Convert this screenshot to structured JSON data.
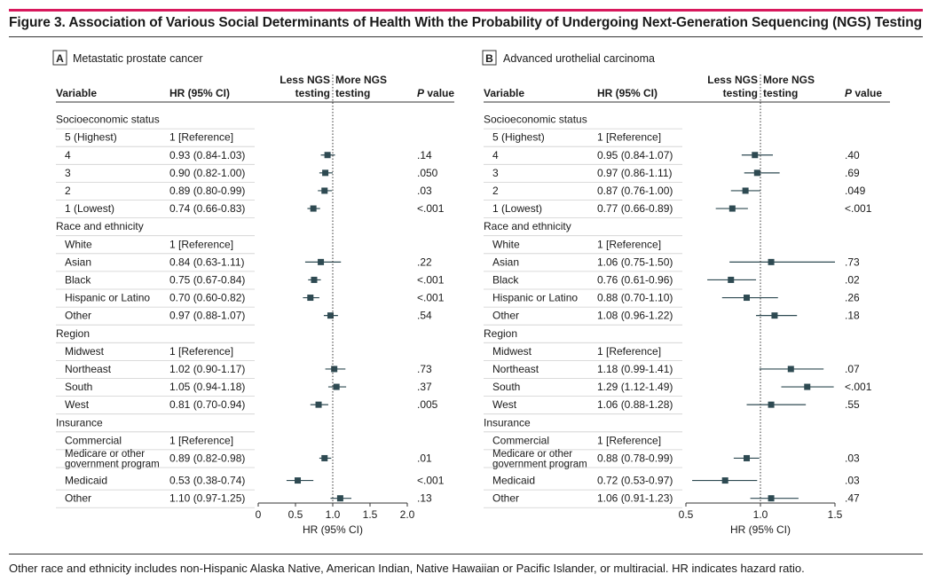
{
  "figure": {
    "title": "Figure 3. Association of Various Social Determinants of Health With the Probability of Undergoing Next-Generation Sequencing (NGS) Testing",
    "footnote": "Other race and ethnicity includes non-Hispanic Alaska Native, American Indian, Native Hawaiian or Pacific Islander, or multiracial. HR indicates hazard ratio.",
    "accent_color": "#d8185c",
    "marker_color": "#2e4a52"
  },
  "headers": {
    "variable": "Variable",
    "hr": "HR (95% CI)",
    "left_dir": [
      "Less NGS",
      "testing"
    ],
    "right_dir": [
      "More NGS",
      "testing"
    ],
    "pvalue": "P value",
    "xlabel": "HR (95% CI)"
  },
  "chart_data": [
    {
      "type": "forest",
      "panel_letter": "A",
      "panel_title": "Metastatic prostate cancer",
      "x_scale": "linear",
      "xlim": [
        0,
        2.0
      ],
      "x_ticks": [
        "0",
        "0.5",
        "1.0",
        "1.5",
        "2.0"
      ],
      "reference_line": 1.0,
      "rows": [
        {
          "variable": "Socioeconomic status",
          "header": true
        },
        {
          "variable": "5 (Highest)",
          "hr_text": "1 [Reference]"
        },
        {
          "variable": "4",
          "hr_text": "0.93 (0.84-1.03)",
          "hr": 0.93,
          "lo": 0.84,
          "hi": 1.03,
          "p": ".14"
        },
        {
          "variable": "3",
          "hr_text": "0.90 (0.82-1.00)",
          "hr": 0.9,
          "lo": 0.82,
          "hi": 1.0,
          "p": ".050"
        },
        {
          "variable": "2",
          "hr_text": "0.89 (0.80-0.99)",
          "hr": 0.89,
          "lo": 0.8,
          "hi": 0.99,
          "p": ".03"
        },
        {
          "variable": "1 (Lowest)",
          "hr_text": "0.74 (0.66-0.83)",
          "hr": 0.74,
          "lo": 0.66,
          "hi": 0.83,
          "p": "<.001"
        },
        {
          "variable": "Race and ethnicity",
          "header": true
        },
        {
          "variable": "White",
          "hr_text": "1 [Reference]"
        },
        {
          "variable": "Asian",
          "hr_text": "0.84 (0.63-1.11)",
          "hr": 0.84,
          "lo": 0.63,
          "hi": 1.11,
          "p": ".22"
        },
        {
          "variable": "Black",
          "hr_text": "0.75 (0.67-0.84)",
          "hr": 0.75,
          "lo": 0.67,
          "hi": 0.84,
          "p": "<.001"
        },
        {
          "variable": "Hispanic or Latino",
          "hr_text": "0.70 (0.60-0.82)",
          "hr": 0.7,
          "lo": 0.6,
          "hi": 0.82,
          "p": "<.001"
        },
        {
          "variable": "Other",
          "hr_text": "0.97 (0.88-1.07)",
          "hr": 0.97,
          "lo": 0.88,
          "hi": 1.07,
          "p": ".54"
        },
        {
          "variable": "Region",
          "header": true
        },
        {
          "variable": "Midwest",
          "hr_text": "1 [Reference]"
        },
        {
          "variable": "Northeast",
          "hr_text": "1.02 (0.90-1.17)",
          "hr": 1.02,
          "lo": 0.9,
          "hi": 1.17,
          "p": ".73"
        },
        {
          "variable": "South",
          "hr_text": "1.05 (0.94-1.18)",
          "hr": 1.05,
          "lo": 0.94,
          "hi": 1.18,
          "p": ".37"
        },
        {
          "variable": "West",
          "hr_text": "0.81 (0.70-0.94)",
          "hr": 0.81,
          "lo": 0.7,
          "hi": 0.94,
          "p": ".005"
        },
        {
          "variable": "Insurance",
          "header": true
        },
        {
          "variable": "Commercial",
          "hr_text": "1 [Reference]"
        },
        {
          "variable": [
            "Medicare or other",
            "government program"
          ],
          "hr_text": "0.89 (0.82-0.98)",
          "hr": 0.89,
          "lo": 0.82,
          "hi": 0.98,
          "p": ".01"
        },
        {
          "variable": "Medicaid",
          "hr_text": "0.53 (0.38-0.74)",
          "hr": 0.53,
          "lo": 0.38,
          "hi": 0.74,
          "p": "<.001"
        },
        {
          "variable": "Other",
          "hr_text": "1.10 (0.97-1.25)",
          "hr": 1.1,
          "lo": 0.97,
          "hi": 1.25,
          "p": ".13"
        }
      ]
    },
    {
      "type": "forest",
      "panel_letter": "B",
      "panel_title": "Advanced urothelial carcinoma",
      "x_scale": "log",
      "xlim": [
        0.5,
        1.5
      ],
      "x_ticks": [
        "0.5",
        "1.0",
        "1.5"
      ],
      "reference_line": 1.0,
      "rows": [
        {
          "variable": "Socioeconomic status",
          "header": true
        },
        {
          "variable": "5 (Highest)",
          "hr_text": "1 [Reference]"
        },
        {
          "variable": "4",
          "hr_text": "0.95 (0.84-1.07)",
          "hr": 0.95,
          "lo": 0.84,
          "hi": 1.07,
          "p": ".40"
        },
        {
          "variable": "3",
          "hr_text": "0.97 (0.86-1.11)",
          "hr": 0.97,
          "lo": 0.86,
          "hi": 1.11,
          "p": ".69"
        },
        {
          "variable": "2",
          "hr_text": "0.87 (0.76-1.00)",
          "hr": 0.87,
          "lo": 0.76,
          "hi": 1.0,
          "p": ".049"
        },
        {
          "variable": "1 (Lowest)",
          "hr_text": "0.77 (0.66-0.89)",
          "hr": 0.77,
          "lo": 0.66,
          "hi": 0.89,
          "p": "<.001"
        },
        {
          "variable": "Race and ethnicity",
          "header": true
        },
        {
          "variable": "White",
          "hr_text": "1 [Reference]"
        },
        {
          "variable": "Asian",
          "hr_text": "1.06 (0.75-1.50)",
          "hr": 1.06,
          "lo": 0.75,
          "hi": 1.5,
          "p": ".73"
        },
        {
          "variable": "Black",
          "hr_text": "0.76 (0.61-0.96)",
          "hr": 0.76,
          "lo": 0.61,
          "hi": 0.96,
          "p": ".02"
        },
        {
          "variable": "Hispanic or Latino",
          "hr_text": "0.88 (0.70-1.10)",
          "hr": 0.88,
          "lo": 0.7,
          "hi": 1.1,
          "p": ".26"
        },
        {
          "variable": "Other",
          "hr_text": "1.08 (0.96-1.22)",
          "hr": 1.08,
          "lo": 0.96,
          "hi": 1.22,
          "p": ".18"
        },
        {
          "variable": "Region",
          "header": true
        },
        {
          "variable": "Midwest",
          "hr_text": "1 [Reference]"
        },
        {
          "variable": "Northeast",
          "hr_text": "1.18 (0.99-1.41)",
          "hr": 1.18,
          "lo": 0.99,
          "hi": 1.41,
          "p": ".07"
        },
        {
          "variable": "South",
          "hr_text": "1.29 (1.12-1.49)",
          "hr": 1.29,
          "lo": 1.12,
          "hi": 1.49,
          "p": "<.001"
        },
        {
          "variable": "West",
          "hr_text": "1.06 (0.88-1.28)",
          "hr": 1.06,
          "lo": 0.88,
          "hi": 1.28,
          "p": ".55"
        },
        {
          "variable": "Insurance",
          "header": true
        },
        {
          "variable": "Commercial",
          "hr_text": "1 [Reference]"
        },
        {
          "variable": [
            "Medicare or other",
            "government program"
          ],
          "hr_text": "0.88 (0.78-0.99)",
          "hr": 0.88,
          "lo": 0.78,
          "hi": 0.99,
          "p": ".03"
        },
        {
          "variable": "Medicaid",
          "hr_text": "0.72 (0.53-0.97)",
          "hr": 0.72,
          "lo": 0.53,
          "hi": 0.97,
          "p": ".03"
        },
        {
          "variable": "Other",
          "hr_text": "1.06 (0.91-1.23)",
          "hr": 1.06,
          "lo": 0.91,
          "hi": 1.23,
          "p": ".47"
        }
      ]
    }
  ]
}
